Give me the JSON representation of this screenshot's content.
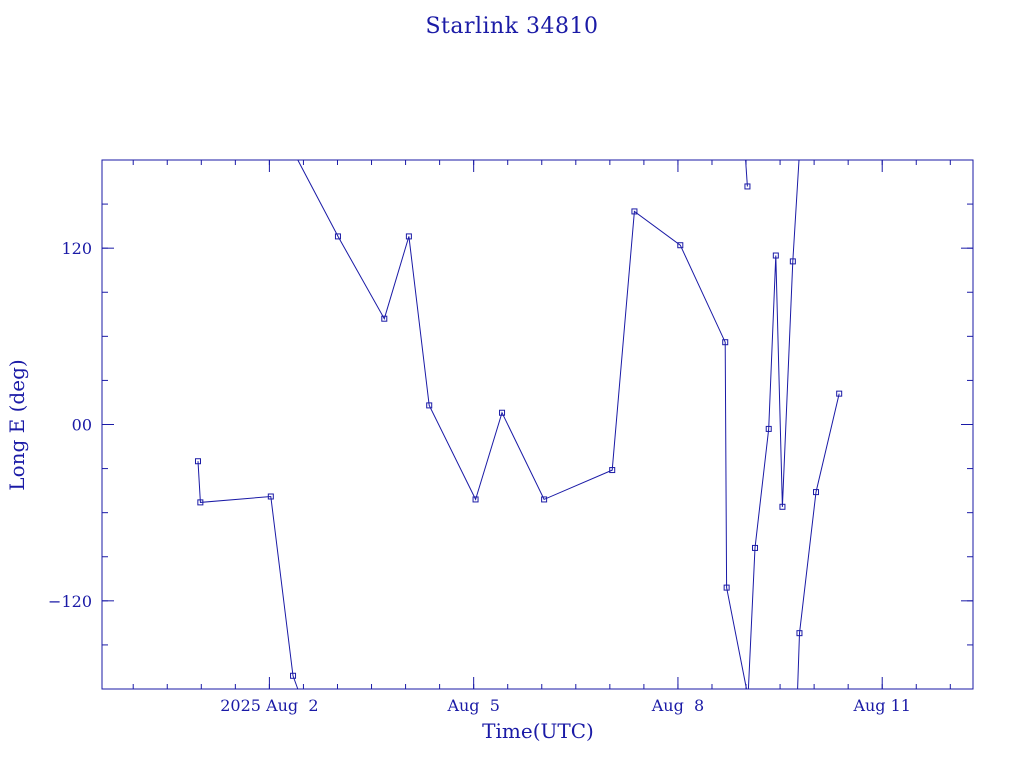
{
  "chart_data": {
    "type": "line",
    "title": "Starlink 34810",
    "xlabel": "Time(UTC)",
    "ylabel": "Long E (deg)",
    "xlim": [
      "2025-07-30T13:00",
      "2025-08-12T08:00"
    ],
    "ylim": [
      -180,
      180
    ],
    "grid": false,
    "x_ticks": [
      {
        "t": "2025-08-02T00:00",
        "label": "2025 Aug  2"
      },
      {
        "t": "2025-08-05T00:00",
        "label": "Aug  5"
      },
      {
        "t": "2025-08-08T00:00",
        "label": "Aug  8"
      },
      {
        "t": "2025-08-11T00:00",
        "label": "Aug 11"
      }
    ],
    "y_ticks": [
      {
        "v": 120,
        "label": "120"
      },
      {
        "v": 0,
        "label": "00"
      },
      {
        "v": -120,
        "label": "−120"
      }
    ],
    "segments": [
      [
        {
          "t": "2025-07-31T22:50",
          "y": -25,
          "marker": true
        },
        {
          "t": "2025-07-31T23:40",
          "y": -53,
          "marker": true
        },
        {
          "t": "2025-08-02T00:30",
          "y": -49,
          "marker": true
        },
        {
          "t": "2025-08-02T08:20",
          "y": -171,
          "marker": true
        },
        {
          "t": "2025-08-02T10:00",
          "y": -180,
          "marker": false
        }
      ],
      [
        {
          "t": "2025-08-02T10:00",
          "y": 180,
          "marker": false
        },
        {
          "t": "2025-08-03T00:10",
          "y": 128,
          "marker": true
        },
        {
          "t": "2025-08-03T16:30",
          "y": 72,
          "marker": true
        },
        {
          "t": "2025-08-04T01:10",
          "y": 128,
          "marker": true
        },
        {
          "t": "2025-08-04T08:20",
          "y": 13,
          "marker": true
        },
        {
          "t": "2025-08-05T00:40",
          "y": -51,
          "marker": true
        },
        {
          "t": "2025-08-05T10:00",
          "y": 8,
          "marker": true
        },
        {
          "t": "2025-08-06T00:50",
          "y": -51,
          "marker": true
        },
        {
          "t": "2025-08-07T00:50",
          "y": -31,
          "marker": true
        },
        {
          "t": "2025-08-07T08:40",
          "y": 145,
          "marker": true
        },
        {
          "t": "2025-08-08T00:50",
          "y": 122,
          "marker": true
        },
        {
          "t": "2025-08-08T16:40",
          "y": 56,
          "marker": true
        },
        {
          "t": "2025-08-08T17:10",
          "y": -111,
          "marker": true
        },
        {
          "t": "2025-08-09T00:10",
          "y": -180,
          "marker": false
        }
      ],
      [
        {
          "t": "2025-08-08T23:50",
          "y": 180,
          "marker": false
        },
        {
          "t": "2025-08-09T00:30",
          "y": 162,
          "marker": true
        }
      ],
      [
        {
          "t": "2025-08-09T00:50",
          "y": -180,
          "marker": false
        },
        {
          "t": "2025-08-09T03:10",
          "y": -84,
          "marker": true
        },
        {
          "t": "2025-08-09T08:00",
          "y": -3,
          "marker": true
        },
        {
          "t": "2025-08-09T10:30",
          "y": 115,
          "marker": true
        },
        {
          "t": "2025-08-09T12:50",
          "y": -56,
          "marker": true
        },
        {
          "t": "2025-08-09T16:30",
          "y": 111,
          "marker": true
        },
        {
          "t": "2025-08-09T18:40",
          "y": 180,
          "marker": false
        }
      ],
      [
        {
          "t": "2025-08-09T18:10",
          "y": -180,
          "marker": false
        },
        {
          "t": "2025-08-09T18:50",
          "y": -142,
          "marker": true
        },
        {
          "t": "2025-08-10T00:40",
          "y": -46,
          "marker": true
        },
        {
          "t": "2025-08-10T08:50",
          "y": 21,
          "marker": true
        }
      ]
    ]
  }
}
